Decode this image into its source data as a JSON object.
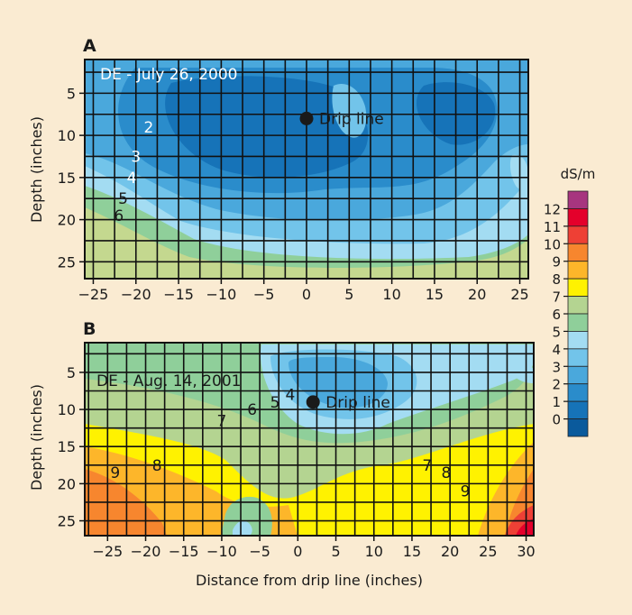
{
  "chart_data": [
    {
      "type": "heatmap",
      "panel_label": "A",
      "title": "DE - July 26, 2000",
      "xlabel": "",
      "ylabel": "Depth (inches)",
      "xlim": [
        -26,
        26
      ],
      "ylim": [
        27,
        1
      ],
      "x_ticks": [
        -25,
        -20,
        -15,
        -10,
        -5,
        0,
        5,
        10,
        15,
        20,
        25
      ],
      "y_ticks": [
        5,
        10,
        15,
        20,
        25
      ],
      "marker": {
        "label": "Drip line",
        "x": 0,
        "y": 8
      },
      "contour_labels": [
        {
          "text": "2",
          "x": -18.5,
          "y": 9,
          "color": "white"
        },
        {
          "text": "3",
          "x": -20,
          "y": 12.5,
          "color": "white"
        },
        {
          "text": "4",
          "x": -20.5,
          "y": 15,
          "color": "white"
        },
        {
          "text": "5",
          "x": -21.5,
          "y": 17.5,
          "color": "black"
        },
        {
          "text": "6",
          "x": -22,
          "y": 19.5,
          "color": "black"
        }
      ]
    },
    {
      "type": "heatmap",
      "panel_label": "B",
      "title": "DE - Aug. 14, 2001",
      "xlabel": "Distance from drip line (inches)",
      "ylabel": "Depth (inches)",
      "xlim": [
        -28,
        31
      ],
      "ylim": [
        27,
        1
      ],
      "x_ticks": [
        -25,
        -20,
        -15,
        -10,
        -5,
        0,
        5,
        10,
        15,
        20,
        25,
        30
      ],
      "y_ticks": [
        5,
        10,
        15,
        20,
        25
      ],
      "marker": {
        "label": "Drip line",
        "x": 2,
        "y": 9
      },
      "contour_labels": [
        {
          "text": "5",
          "x": -3,
          "y": 9,
          "color": "black"
        },
        {
          "text": "4",
          "x": -1,
          "y": 8,
          "color": "black"
        },
        {
          "text": "6",
          "x": -6,
          "y": 10,
          "color": "black"
        },
        {
          "text": "7",
          "x": -10,
          "y": 11.5,
          "color": "black"
        },
        {
          "text": "8",
          "x": -18.5,
          "y": 17.5,
          "color": "black"
        },
        {
          "text": "9",
          "x": -24,
          "y": 18.5,
          "color": "black"
        },
        {
          "text": "7",
          "x": 17,
          "y": 17.5,
          "color": "black"
        },
        {
          "text": "8",
          "x": 19.5,
          "y": 18.5,
          "color": "black"
        },
        {
          "text": "9",
          "x": 22,
          "y": 21,
          "color": "black"
        }
      ]
    }
  ],
  "colorbar": {
    "unit": "dS/m",
    "ticks": [
      "0",
      "1",
      "2",
      "3",
      "4",
      "5",
      "6",
      "7",
      "8",
      "9",
      "10",
      "11",
      "12"
    ],
    "colors": [
      "#0a5a9c",
      "#1673b8",
      "#2a8ccb",
      "#4aa8dc",
      "#72c4ea",
      "#a3dcf2",
      "#8fcf9a",
      "#b4d491",
      "#fff200",
      "#fdb62a",
      "#f7862e",
      "#ee4035",
      "#e4002b",
      "#a7357f"
    ]
  }
}
